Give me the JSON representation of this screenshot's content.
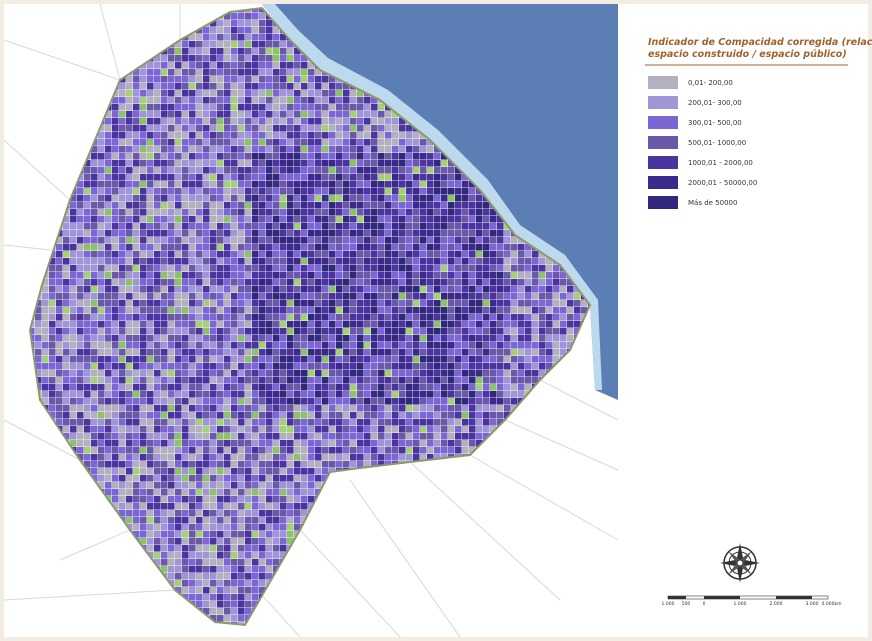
{
  "legend": {
    "title_lines": [
      "Indicador de Compacidad corregida (relación",
      "espacio construido / espacio público)"
    ],
    "items": [
      {
        "label": "0,01- 200,00",
        "color": "#b3b1c0"
      },
      {
        "label": "200,01- 300,00",
        "color": "#a095d6"
      },
      {
        "label": "300,01- 500,00",
        "color": "#7b66d4"
      },
      {
        "label": "500,01- 1000,00",
        "color": "#6a58a8"
      },
      {
        "label": "1000,01 - 2000,00",
        "color": "#4b34a0"
      },
      {
        "label": "2000,01 - 50000,00",
        "color": "#3b2a8c"
      },
      {
        "label": "Más de 50000",
        "color": "#30287a"
      }
    ]
  },
  "scale": {
    "labels": [
      "1.000",
      "500",
      "0",
      "1.000",
      "2.000",
      "3.000",
      "4.000"
    ],
    "unit": "km"
  }
}
